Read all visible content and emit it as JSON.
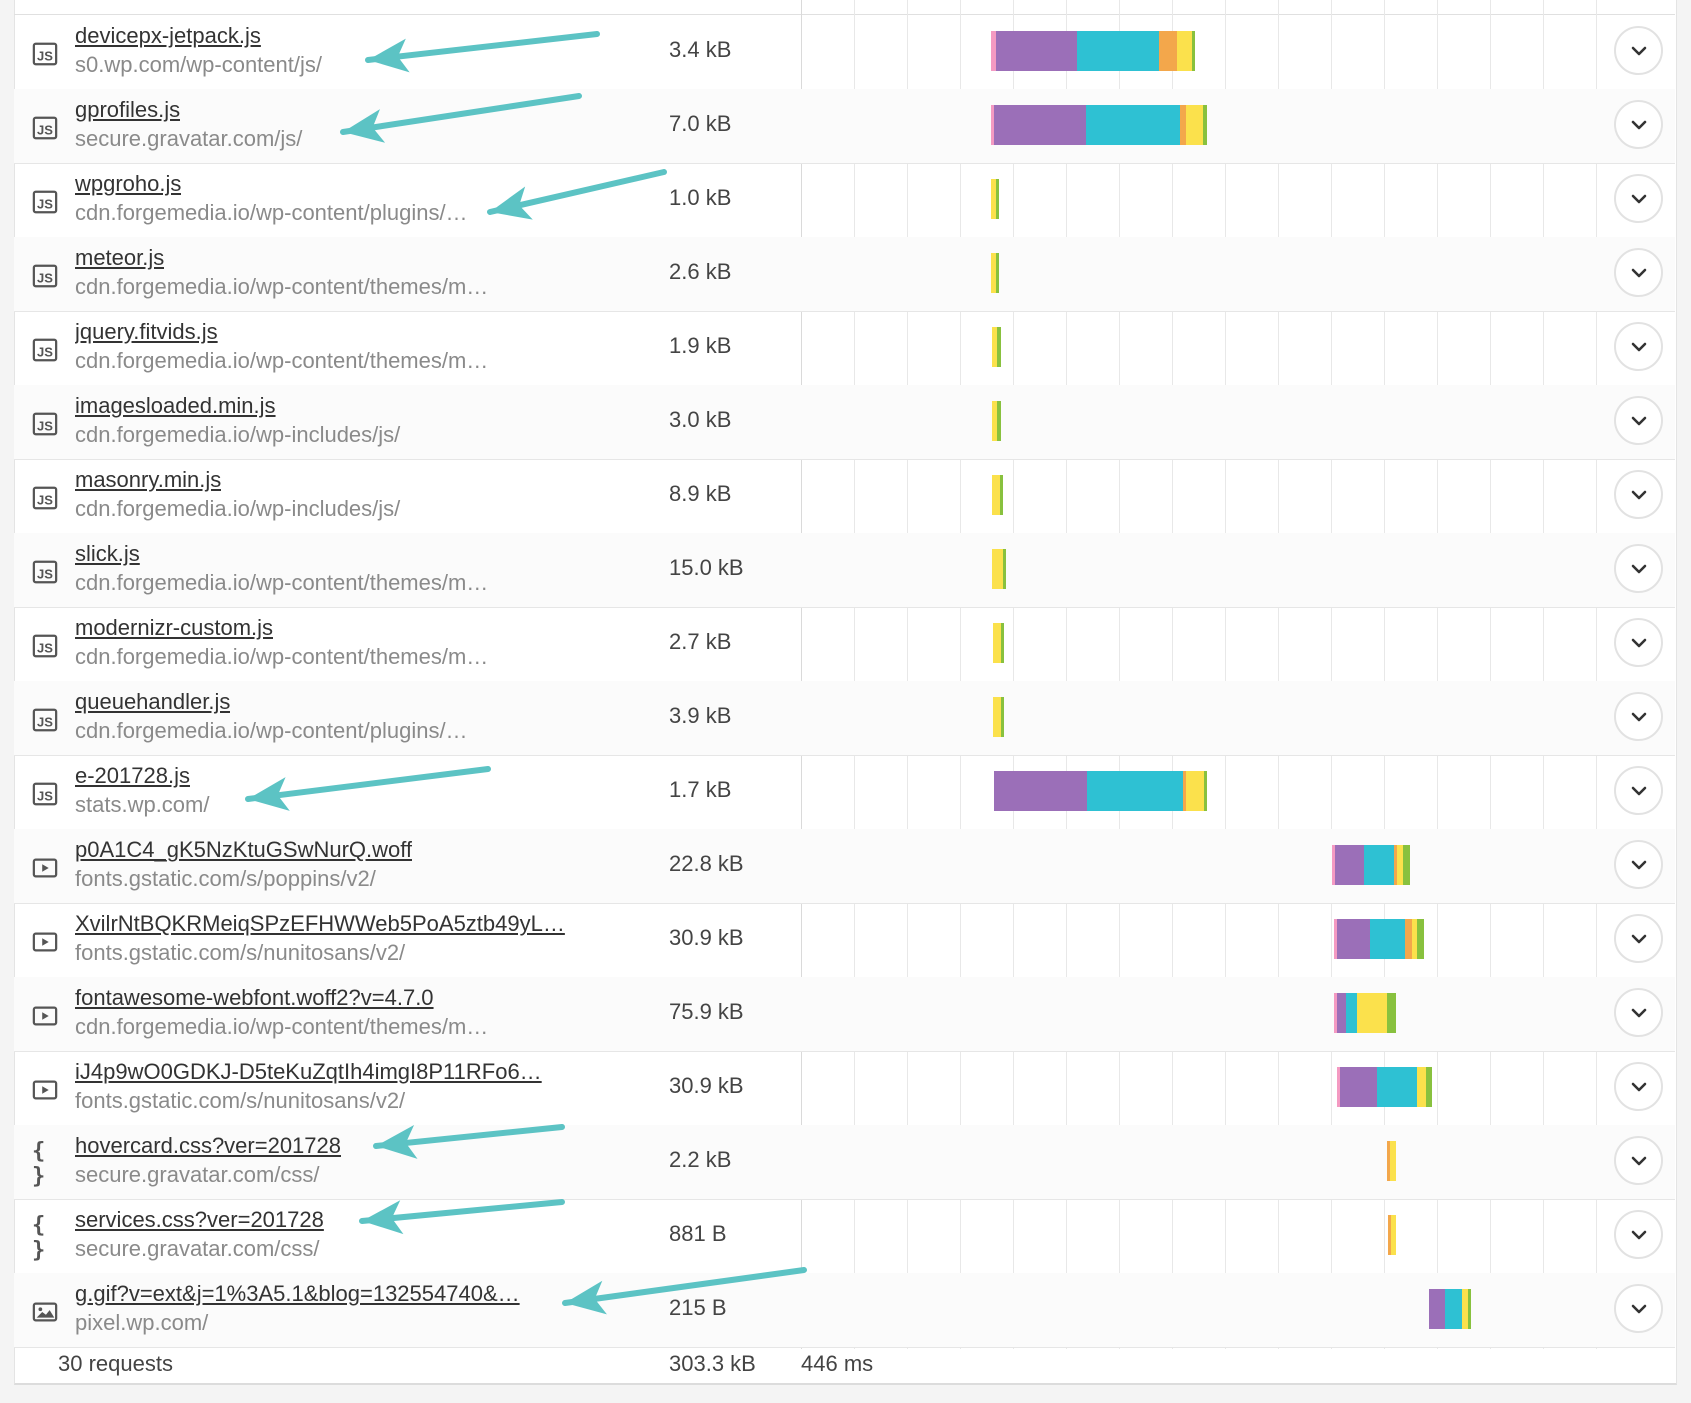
{
  "colors": {
    "blocking": "#f49ac2",
    "dns": "#2ec1d3",
    "connect": "#9b6fb8",
    "send": "#f3a74b",
    "wait": "#fbe14c",
    "receive": "#88c13e",
    "arrow": "#5cc3c4"
  },
  "requests": [
    {
      "name": "devicepx-jetpack.js",
      "url": "s0.wp.com/wp-content/js/",
      "size": "3.4 kB",
      "type": "js",
      "icon": "js-file-icon",
      "timing": {
        "start": 0.0,
        "segments": [
          {
            "c": "blocking",
            "w": 0.5
          },
          {
            "c": "connect",
            "w": 7.5
          },
          {
            "c": "dns",
            "w": 7.6
          },
          {
            "c": "send",
            "w": 1.6
          },
          {
            "c": "wait",
            "w": 1.4
          },
          {
            "c": "receive",
            "w": 0.2
          }
        ]
      }
    },
    {
      "name": "gprofiles.js",
      "url": "secure.gravatar.com/js/",
      "size": "7.0 kB",
      "type": "js",
      "icon": "js-file-icon",
      "timing": {
        "start": 0.0,
        "segments": [
          {
            "c": "blocking",
            "w": 0.3
          },
          {
            "c": "connect",
            "w": 8.5
          },
          {
            "c": "dns",
            "w": 8.7
          },
          {
            "c": "send",
            "w": 0.6
          },
          {
            "c": "wait",
            "w": 1.5
          },
          {
            "c": "receive",
            "w": 0.4
          }
        ]
      }
    },
    {
      "name": "wpgroho.js",
      "url": "cdn.forgemedia.io/wp-content/plugins/…",
      "size": "1.0 kB",
      "type": "js",
      "icon": "js-file-icon",
      "timing": {
        "start": 0.0,
        "segments": [
          {
            "c": "wait",
            "w": 0.5
          },
          {
            "c": "receive",
            "w": 0.2
          }
        ]
      }
    },
    {
      "name": "meteor.js",
      "url": "cdn.forgemedia.io/wp-content/themes/m…",
      "size": "2.6 kB",
      "type": "js",
      "icon": "js-file-icon",
      "timing": {
        "start": 0.0,
        "segments": [
          {
            "c": "wait",
            "w": 0.5
          },
          {
            "c": "receive",
            "w": 0.2
          }
        ]
      }
    },
    {
      "name": "jquery.fitvids.js",
      "url": "cdn.forgemedia.io/wp-content/themes/m…",
      "size": "1.9 kB",
      "type": "js",
      "icon": "js-file-icon",
      "timing": {
        "start": 0.1,
        "segments": [
          {
            "c": "wait",
            "w": 0.5
          },
          {
            "c": "receive",
            "w": 0.3
          }
        ]
      }
    },
    {
      "name": "imagesloaded.min.js",
      "url": "cdn.forgemedia.io/wp-includes/js/",
      "size": "3.0 kB",
      "type": "js",
      "icon": "js-file-icon",
      "timing": {
        "start": 0.1,
        "segments": [
          {
            "c": "wait",
            "w": 0.5
          },
          {
            "c": "receive",
            "w": 0.3
          }
        ]
      }
    },
    {
      "name": "masonry.min.js",
      "url": "cdn.forgemedia.io/wp-includes/js/",
      "size": "8.9 kB",
      "type": "js",
      "icon": "js-file-icon",
      "timing": {
        "start": 0.1,
        "segments": [
          {
            "c": "wait",
            "w": 0.7
          },
          {
            "c": "receive",
            "w": 0.3
          }
        ]
      }
    },
    {
      "name": "slick.js",
      "url": "cdn.forgemedia.io/wp-content/themes/m…",
      "size": "15.0 kB",
      "type": "js",
      "icon": "js-file-icon",
      "timing": {
        "start": 0.1,
        "segments": [
          {
            "c": "wait",
            "w": 1.0
          },
          {
            "c": "receive",
            "w": 0.2
          }
        ]
      }
    },
    {
      "name": "modernizr-custom.js",
      "url": "cdn.forgemedia.io/wp-content/themes/m…",
      "size": "2.7 kB",
      "type": "js",
      "icon": "js-file-icon",
      "timing": {
        "start": 0.2,
        "segments": [
          {
            "c": "wait",
            "w": 0.7
          },
          {
            "c": "receive",
            "w": 0.3
          }
        ]
      }
    },
    {
      "name": "queuehandler.js",
      "url": "cdn.forgemedia.io/wp-content/plugins/…",
      "size": "3.9 kB",
      "type": "js",
      "icon": "js-file-icon",
      "timing": {
        "start": 0.2,
        "segments": [
          {
            "c": "wait",
            "w": 0.7
          },
          {
            "c": "receive",
            "w": 0.3
          }
        ]
      }
    },
    {
      "name": "e-201728.js",
      "url": "stats.wp.com/",
      "size": "1.7 kB",
      "type": "js",
      "icon": "js-file-icon",
      "timing": {
        "start": 0.3,
        "segments": [
          {
            "c": "connect",
            "w": 8.6
          },
          {
            "c": "dns",
            "w": 8.9
          },
          {
            "c": "send",
            "w": 0.3
          },
          {
            "c": "wait",
            "w": 1.6
          },
          {
            "c": "receive",
            "w": 0.2
          }
        ]
      }
    },
    {
      "name": "p0A1C4_gK5NzKtuGSwNurQ.woff",
      "url": "fonts.gstatic.com/s/poppins/v2/",
      "size": "22.8 kB",
      "type": "font",
      "icon": "font-file-icon",
      "timing": {
        "start": 31.6,
        "segments": [
          {
            "c": "blocking",
            "w": 0.2
          },
          {
            "c": "connect",
            "w": 2.7
          },
          {
            "c": "dns",
            "w": 2.7
          },
          {
            "c": "send",
            "w": 0.3
          },
          {
            "c": "wait",
            "w": 0.6
          },
          {
            "c": "receive",
            "w": 0.6
          }
        ]
      }
    },
    {
      "name": "XvilrNtBQKRMeiqSPzEFHWWeb5PoA5ztb49yL…",
      "url": "fonts.gstatic.com/s/nunitosans/v2/",
      "size": "30.9 kB",
      "type": "font",
      "icon": "font-file-icon",
      "timing": {
        "start": 31.8,
        "segments": [
          {
            "c": "blocking",
            "w": 0.2
          },
          {
            "c": "connect",
            "w": 3.0
          },
          {
            "c": "dns",
            "w": 3.3
          },
          {
            "c": "send",
            "w": 0.6
          },
          {
            "c": "wait",
            "w": 0.5
          },
          {
            "c": "receive",
            "w": 0.6
          }
        ]
      }
    },
    {
      "name": "fontawesome-webfont.woff2?v=4.7.0",
      "url": "cdn.forgemedia.io/wp-content/themes/m…",
      "size": "75.9 kB",
      "type": "font",
      "icon": "font-file-icon",
      "timing": {
        "start": 31.8,
        "segments": [
          {
            "c": "blocking",
            "w": 0.2
          },
          {
            "c": "connect",
            "w": 0.8
          },
          {
            "c": "dns",
            "w": 1.0
          },
          {
            "c": "wait",
            "w": 2.8
          },
          {
            "c": "receive",
            "w": 0.8
          }
        ]
      }
    },
    {
      "name": "iJ4p9wO0GDKJ-D5teKuZqtIh4imgI8P11RFo6…",
      "url": "fonts.gstatic.com/s/nunitosans/v2/",
      "size": "30.9 kB",
      "type": "font",
      "icon": "font-file-icon",
      "timing": {
        "start": 32.0,
        "segments": [
          {
            "c": "blocking",
            "w": 0.1
          },
          {
            "c": "connect",
            "w": 3.5
          },
          {
            "c": "dns",
            "w": 3.7
          },
          {
            "c": "wait",
            "w": 0.8
          },
          {
            "c": "receive",
            "w": 0.6
          }
        ]
      }
    },
    {
      "name": "hovercard.css?ver=201728",
      "url": "secure.gravatar.com/css/",
      "size": "2.2 kB",
      "type": "css",
      "icon": "css-file-icon",
      "timing": {
        "start": 36.7,
        "segments": [
          {
            "c": "send",
            "w": 0.1
          },
          {
            "c": "wait",
            "w": 0.5
          }
        ]
      }
    },
    {
      "name": "services.css?ver=201728",
      "url": "secure.gravatar.com/css/",
      "size": "881 B",
      "type": "css",
      "icon": "css-file-icon",
      "timing": {
        "start": 36.8,
        "segments": [
          {
            "c": "send",
            "w": 0.1
          },
          {
            "c": "wait",
            "w": 0.4
          }
        ]
      }
    },
    {
      "name": "g.gif?v=ext&j=1%3A5.1&blog=132554740&…",
      "url": "pixel.wp.com/",
      "size": "215 B",
      "type": "image",
      "icon": "image-file-icon",
      "timing": {
        "start": 40.6,
        "segments": [
          {
            "c": "connect",
            "w": 1.4
          },
          {
            "c": "dns",
            "w": 1.6
          },
          {
            "c": "wait",
            "w": 0.6
          },
          {
            "c": "receive",
            "w": 0.2
          }
        ]
      }
    }
  ],
  "summary": {
    "requests": "30 requests",
    "total_size": "303.3 kB",
    "load_time": "446 ms"
  }
}
